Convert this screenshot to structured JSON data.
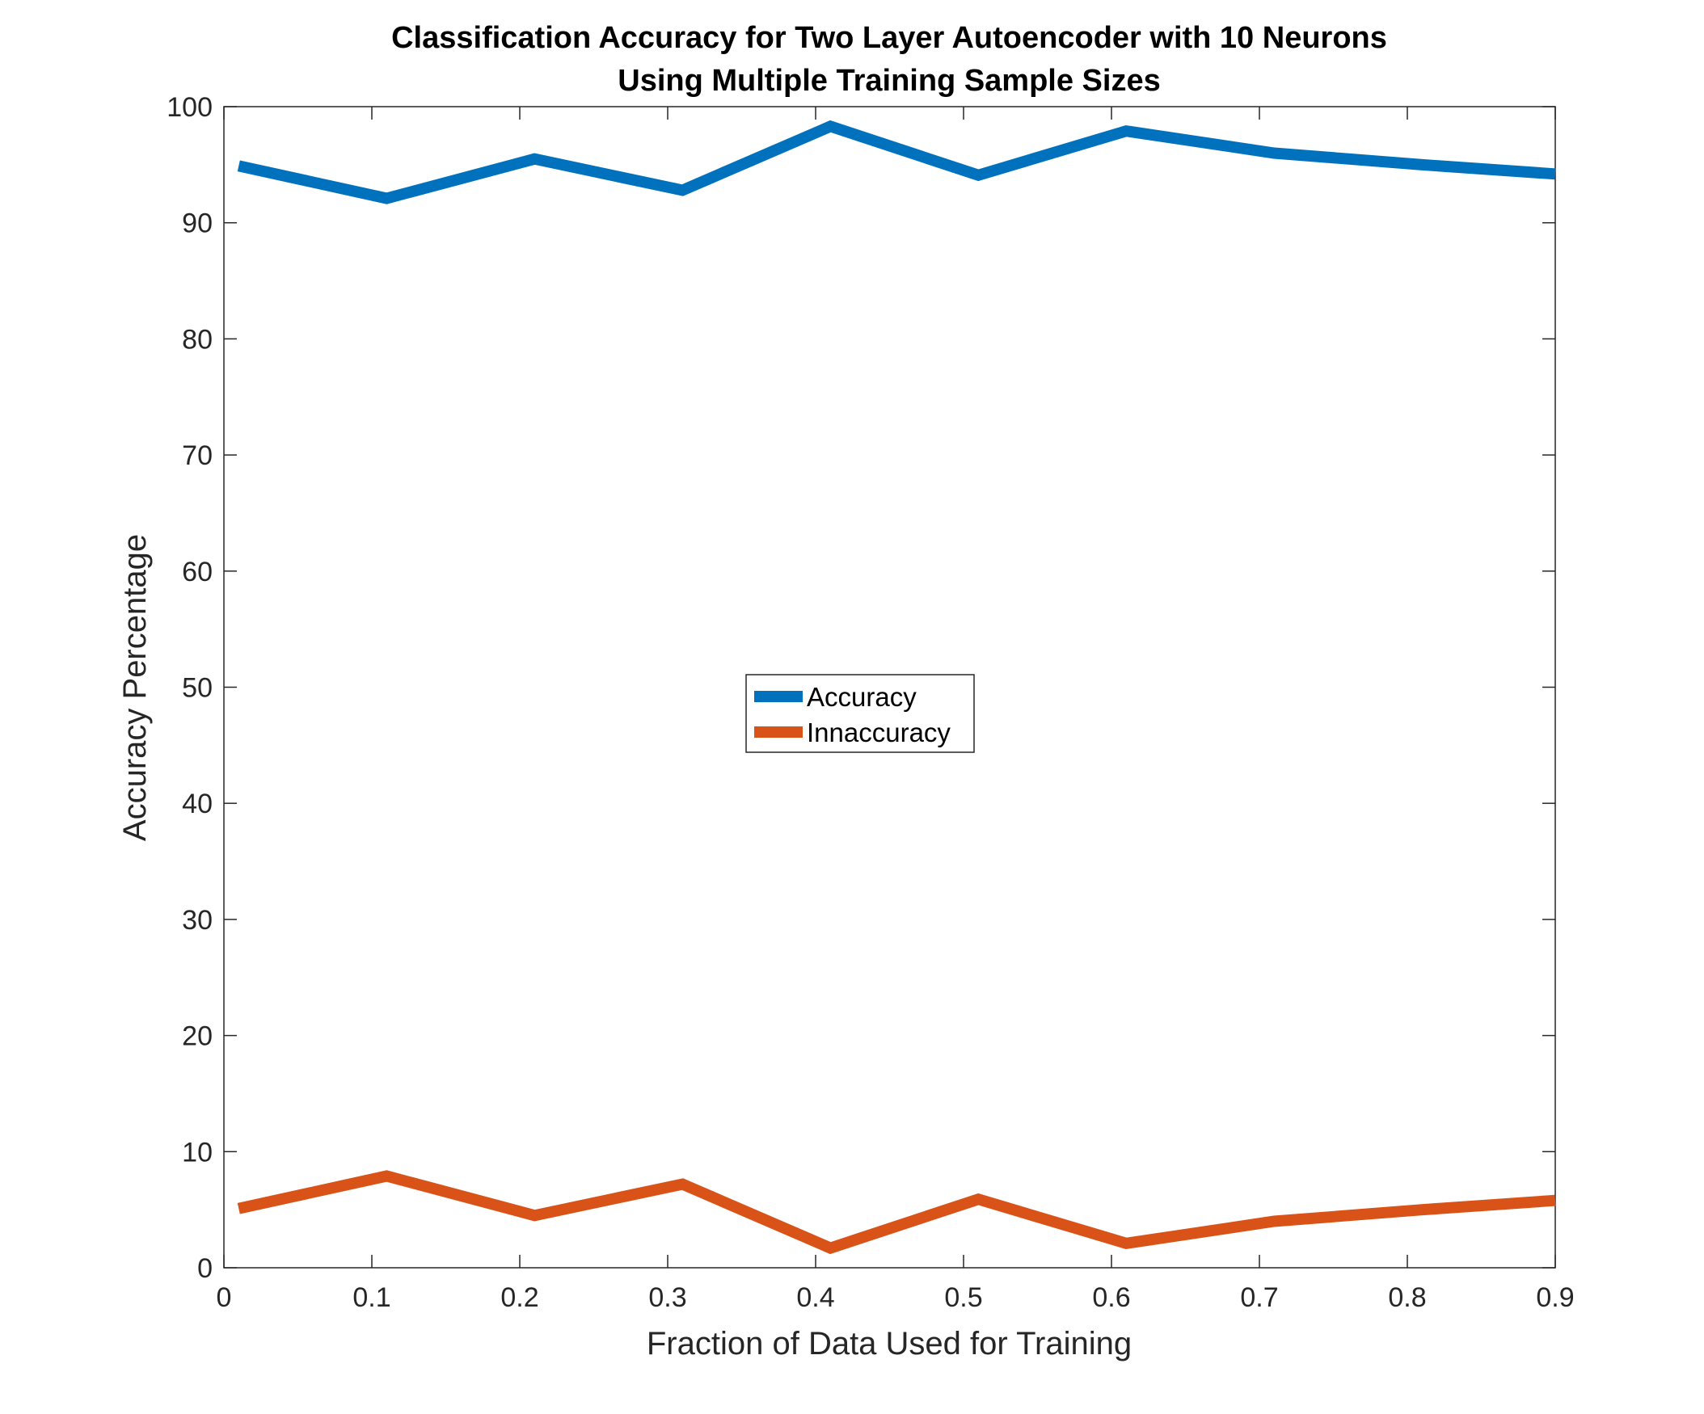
{
  "chart_data": {
    "type": "line",
    "title_line1": "Classification Accuracy for Two Layer Autoencoder with 10 Neurons",
    "title_line2": "Using Multiple Training Sample Sizes",
    "xlabel": "Fraction of Data Used for Training",
    "ylabel": "Accuracy Percentage",
    "xlim": [
      0,
      0.9
    ],
    "ylim": [
      0,
      100
    ],
    "xticks": [
      0,
      0.1,
      0.2,
      0.3,
      0.4,
      0.5,
      0.6,
      0.7,
      0.8,
      0.9
    ],
    "xtick_labels": [
      "0",
      "0.1",
      "0.2",
      "0.3",
      "0.4",
      "0.5",
      "0.6",
      "0.7",
      "0.8",
      "0.9"
    ],
    "yticks": [
      0,
      10,
      20,
      30,
      40,
      50,
      60,
      70,
      80,
      90,
      100
    ],
    "ytick_labels": [
      "0",
      "10",
      "20",
      "30",
      "40",
      "50",
      "60",
      "70",
      "80",
      "90",
      "100"
    ],
    "grid": false,
    "legend_position": "center",
    "x": [
      0.01,
      0.11,
      0.21,
      0.31,
      0.41,
      0.51,
      0.61,
      0.71,
      0.81,
      0.9
    ],
    "series": [
      {
        "name": "Accuracy",
        "color": "#0072BD",
        "values": [
          94.9,
          92.1,
          95.5,
          92.8,
          98.3,
          94.1,
          97.9,
          96.0,
          95.0,
          94.2
        ]
      },
      {
        "name": "Innaccuracy",
        "color": "#D95319",
        "values": [
          5.1,
          7.9,
          4.5,
          7.2,
          1.7,
          5.9,
          2.1,
          4.0,
          5.0,
          5.8
        ]
      }
    ]
  }
}
